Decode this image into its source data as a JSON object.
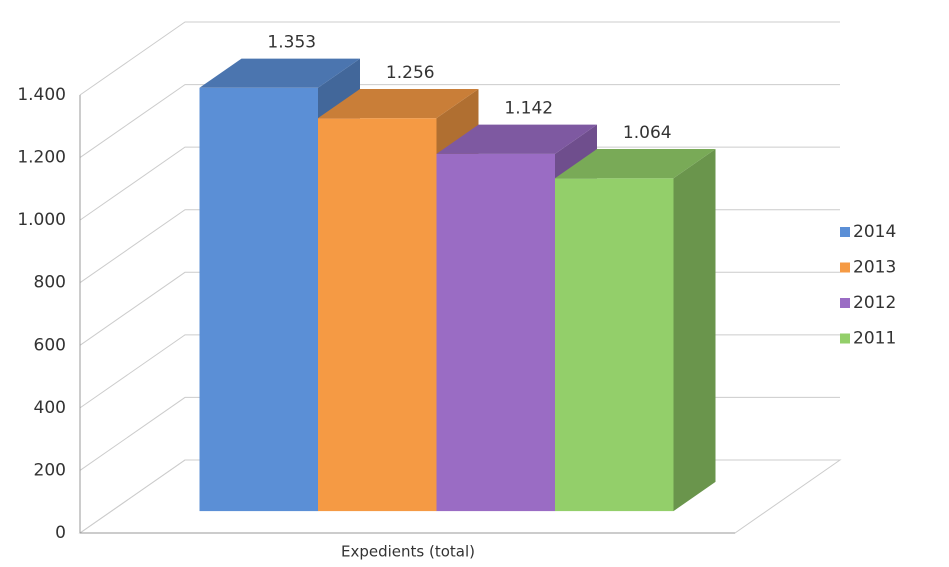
{
  "chart_data": {
    "type": "bar3d",
    "categories": [
      "Expedients (total)"
    ],
    "series": [
      {
        "name": "2014",
        "color": "#5b8fd6",
        "values": [
          1353
        ],
        "value_labels": [
          "1.353"
        ]
      },
      {
        "name": "2013",
        "color": "#f59a44",
        "values": [
          1256
        ],
        "value_labels": [
          "1.256"
        ]
      },
      {
        "name": "2012",
        "color": "#9a6cc4",
        "values": [
          1142
        ],
        "value_labels": [
          "1.142"
        ]
      },
      {
        "name": "2011",
        "color": "#93cf6a",
        "values": [
          1064
        ],
        "value_labels": [
          "1.064"
        ]
      }
    ],
    "ylim": [
      0,
      1400
    ],
    "yticks": [
      0,
      200,
      400,
      600,
      800,
      {
        "value": 1000,
        "label": "1.000"
      },
      {
        "value": 1200,
        "label": "1.200"
      },
      {
        "value": 1400,
        "label": "1.400"
      }
    ],
    "grid": true,
    "legend": "right"
  }
}
